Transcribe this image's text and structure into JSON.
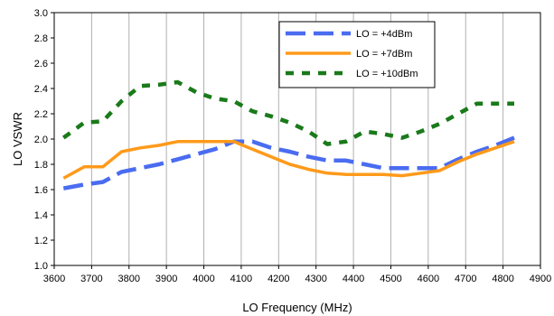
{
  "chart_data": {
    "type": "line",
    "title": "",
    "xlabel": "LO Frequency (MHz)",
    "ylabel": "LO VSWR",
    "xlim": [
      3600,
      4900
    ],
    "ylim": [
      1.0,
      3.0
    ],
    "xticks": [
      3600,
      3700,
      3800,
      3900,
      4000,
      4100,
      4200,
      4300,
      4400,
      4500,
      4600,
      4700,
      4800,
      4900
    ],
    "yticks": [
      "1.0",
      "1.2",
      "1.4",
      "1.6",
      "1.8",
      "2.0",
      "2.2",
      "2.4",
      "2.6",
      "2.8",
      "3.0"
    ],
    "grid": "vertical",
    "legend_position": "top-right",
    "series": [
      {
        "name": "LO = +4dBm",
        "color": "#4a6cf0",
        "style": "long-dash",
        "x": [
          3625,
          3680,
          3730,
          3780,
          3830,
          3880,
          3930,
          3980,
          4030,
          4080,
          4130,
          4180,
          4230,
          4280,
          4330,
          4380,
          4430,
          4480,
          4530,
          4580,
          4630,
          4680,
          4730,
          4780,
          4830
        ],
        "y": [
          1.61,
          1.64,
          1.66,
          1.74,
          1.77,
          1.8,
          1.84,
          1.88,
          1.92,
          1.98,
          1.98,
          1.93,
          1.9,
          1.86,
          1.83,
          1.83,
          1.8,
          1.77,
          1.77,
          1.77,
          1.77,
          1.84,
          1.9,
          1.95,
          2.01
        ]
      },
      {
        "name": "LO = +7dBm",
        "color": "#ff9a1a",
        "style": "solid",
        "x": [
          3625,
          3680,
          3730,
          3780,
          3830,
          3880,
          3930,
          3980,
          4030,
          4080,
          4130,
          4180,
          4230,
          4280,
          4330,
          4380,
          4430,
          4480,
          4530,
          4580,
          4630,
          4680,
          4730,
          4780,
          4830
        ],
        "y": [
          1.69,
          1.78,
          1.78,
          1.9,
          1.93,
          1.95,
          1.98,
          1.98,
          1.98,
          1.98,
          1.92,
          1.86,
          1.8,
          1.76,
          1.73,
          1.72,
          1.72,
          1.72,
          1.71,
          1.73,
          1.75,
          1.82,
          1.88,
          1.93,
          1.98
        ]
      },
      {
        "name": "LO = +10dBm",
        "color": "#1a7a1a",
        "style": "short-dash",
        "x": [
          3625,
          3680,
          3730,
          3780,
          3830,
          3880,
          3930,
          3980,
          4030,
          4080,
          4130,
          4180,
          4230,
          4280,
          4330,
          4380,
          4430,
          4480,
          4530,
          4580,
          4630,
          4680,
          4730,
          4780,
          4830
        ],
        "y": [
          2.01,
          2.13,
          2.14,
          2.3,
          2.42,
          2.43,
          2.45,
          2.37,
          2.32,
          2.3,
          2.22,
          2.18,
          2.13,
          2.06,
          1.96,
          1.98,
          2.06,
          2.04,
          2.01,
          2.06,
          2.12,
          2.2,
          2.28,
          2.28,
          2.28
        ]
      }
    ]
  }
}
